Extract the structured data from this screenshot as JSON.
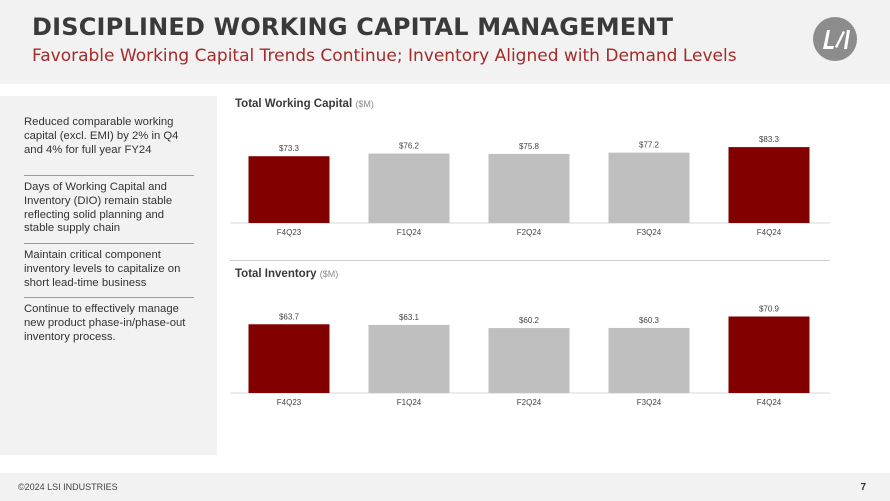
{
  "header": {
    "title": "DISCIPLINED WORKING CAPITAL MANAGEMENT",
    "subtitle": "Favorable Working Capital Trends Continue; Inventory Aligned with Demand Levels",
    "logo_text": "LSI"
  },
  "sidebar": {
    "bullets": [
      "Reduced comparable working capital (excl. EMI) by 2% in Q4 and 4% for full year FY24",
      "Days of Working Capital and Inventory (DIO) remain stable reflecting solid planning and stable supply chain",
      "Maintain critical component inventory levels to capitalize on short lead-time business",
      "Continue to effectively manage new product phase-in/phase-out inventory process."
    ]
  },
  "charts": {
    "working_capital": {
      "title": "Total Working Capital",
      "unit": "($M)"
    },
    "inventory": {
      "title": "Total Inventory",
      "unit": "($M)"
    }
  },
  "chart_data": [
    {
      "type": "bar",
      "title": "Total Working Capital",
      "ylabel": "($M)",
      "categories": [
        "F4Q23",
        "F1Q24",
        "F2Q24",
        "F3Q24",
        "F4Q24"
      ],
      "values": [
        73.3,
        76.2,
        75.8,
        77.2,
        83.3
      ],
      "labels": [
        "$73.3",
        "$76.2",
        "$75.8",
        "$77.2",
        "$83.3"
      ],
      "colors": [
        "#820000",
        "#bfbfbf",
        "#bfbfbf",
        "#bfbfbf",
        "#820000"
      ],
      "ylim": [
        0,
        90
      ]
    },
    {
      "type": "bar",
      "title": "Total Inventory",
      "ylabel": "($M)",
      "categories": [
        "F4Q23",
        "F1Q24",
        "F2Q24",
        "F3Q24",
        "F4Q24"
      ],
      "values": [
        63.7,
        63.1,
        60.2,
        60.3,
        70.9
      ],
      "labels": [
        "$63.7",
        "$63.1",
        "$60.2",
        "$60.3",
        "$70.9"
      ],
      "colors": [
        "#820000",
        "#bfbfbf",
        "#bfbfbf",
        "#bfbfbf",
        "#820000"
      ],
      "ylim": [
        0,
        76
      ]
    }
  ],
  "footer": {
    "copyright": "©2024 LSI INDUSTRIES",
    "page_number": "7"
  },
  "colors": {
    "accent": "#a52a2a",
    "bar_highlight": "#820000",
    "bar_neutral": "#bfbfbf"
  }
}
